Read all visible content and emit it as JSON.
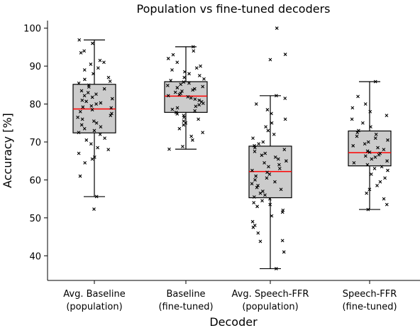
{
  "chart_data": {
    "type": "box",
    "title": "Population vs fine-tuned decoders",
    "xlabel": "Decoder",
    "ylabel": "Accuracy [%]",
    "ylim": [
      33.5,
      102
    ],
    "yticks": [
      40,
      50,
      60,
      70,
      80,
      90,
      100
    ],
    "grid": false,
    "colors": {
      "box_fill": "#cccccc",
      "box_edge": "#000000",
      "median": "#ff0000",
      "points": "#000000"
    },
    "categories": [
      {
        "line1": "Avg. Baseline",
        "line2": "(population)"
      },
      {
        "line1": "Baseline",
        "line2": "(fine-tuned)"
      },
      {
        "line1": "Avg. Speech-FFR",
        "line2": "(population)"
      },
      {
        "line1": "Speech-FFR",
        "line2": "(fine-tuned)"
      }
    ],
    "boxes": [
      {
        "whislo": 55.6,
        "q1": 72.4,
        "med": 78.7,
        "q3": 85.2,
        "whishi": 96.9
      },
      {
        "whislo": 68.1,
        "q1": 77.8,
        "med": 82.1,
        "q3": 85.9,
        "whishi": 95.1
      },
      {
        "whislo": 36.6,
        "q1": 55.3,
        "med": 62.2,
        "q3": 68.9,
        "whishi": 82.2
      },
      {
        "whislo": 52.2,
        "q1": 63.7,
        "med": 67.2,
        "q3": 72.9,
        "whishi": 85.9
      }
    ],
    "points": [
      [
        52.3,
        55.6,
        61,
        64.5,
        65.5,
        66,
        67,
        68,
        68.5,
        69.5,
        70.5,
        71,
        72,
        72.5,
        73,
        73.5,
        74,
        74.5,
        75,
        75.5,
        76,
        76.5,
        77,
        77.5,
        78,
        78.5,
        79,
        79.2,
        79.5,
        80,
        80.3,
        80.7,
        81,
        81.4,
        81.8,
        82.2,
        82.6,
        83,
        83.5,
        84,
        84.5,
        85,
        85.5,
        86,
        86.5,
        87,
        88,
        89,
        89.5,
        90.5,
        91,
        91.5,
        93.5,
        94,
        96,
        96.9
      ],
      [
        68.1,
        68.8,
        70.5,
        71.5,
        72.5,
        73.5,
        74.5,
        75,
        75.5,
        76,
        76.5,
        77,
        77.4,
        77.8,
        78.2,
        78.6,
        79,
        79.4,
        79.8,
        80.2,
        80.6,
        81,
        81.3,
        81.6,
        81.9,
        82.2,
        82.5,
        82.8,
        83.1,
        83.4,
        83.7,
        84,
        84.3,
        84.6,
        84.9,
        85.2,
        85.5,
        85.8,
        86.2,
        86.6,
        87,
        87.5,
        88,
        88.5,
        89,
        89.5,
        90,
        91,
        92,
        93,
        94,
        95.1
      ],
      [
        36.6,
        41,
        43.8,
        44,
        46,
        47.5,
        48,
        49,
        50.5,
        51.5,
        52,
        53,
        53.5,
        54,
        54.5,
        55,
        55.5,
        56,
        56.5,
        57,
        57.5,
        58,
        58.5,
        59,
        59.5,
        60,
        60.5,
        61,
        61.5,
        62,
        62.5,
        63,
        63.5,
        64,
        64.5,
        65,
        65.5,
        66,
        66.5,
        67,
        67.5,
        68,
        68.5,
        69,
        69.5,
        70,
        71,
        72,
        73,
        74,
        75,
        76,
        77.5,
        78.5,
        80,
        81.5,
        82.2,
        91.7,
        93.1,
        100
      ],
      [
        52.2,
        53.5,
        55,
        56.5,
        57.5,
        58.5,
        59.5,
        60.5,
        61.5,
        62.5,
        63,
        63.5,
        64,
        64.5,
        65,
        65.5,
        66,
        66.3,
        66.6,
        67,
        67.3,
        67.6,
        68,
        68.5,
        69,
        69.5,
        70,
        70.5,
        71,
        71.5,
        72,
        72.5,
        73,
        74,
        75,
        76,
        77,
        78,
        79,
        80,
        82,
        85.9
      ]
    ]
  }
}
